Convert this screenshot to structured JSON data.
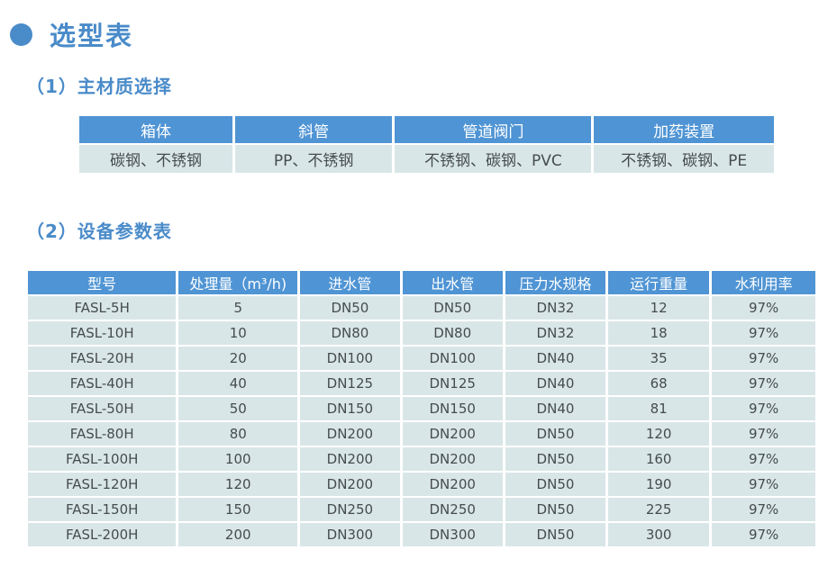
{
  "page": {
    "title": "选型表"
  },
  "colors": {
    "accent_blue": "#4a8bc9",
    "table_header_bg": "#4f94d4",
    "table_cell_bg": "#d9e6e8",
    "cell_text": "#454c4e",
    "background": "#ffffff"
  },
  "sections": {
    "material": {
      "heading": "（1）主材质选择",
      "table": {
        "headers": [
          "箱体",
          "斜管",
          "管道阀门",
          "加药装置"
        ],
        "rows": [
          [
            "碳钢、不锈钢",
            "PP、不锈钢",
            "不锈钢、碳钢、PVC",
            "不锈钢、碳钢、PE"
          ]
        ]
      }
    },
    "params": {
      "heading": "（2）设备参数表",
      "table": {
        "headers": [
          "型号",
          "处理量（m³/h)",
          "进水管",
          "出水管",
          "压力水规格",
          "运行重量",
          "水利用率"
        ],
        "rows": [
          [
            "FASL-5H",
            "5",
            "DN50",
            "DN50",
            "DN32",
            "12",
            "97%"
          ],
          [
            "FASL-10H",
            "10",
            "DN80",
            "DN80",
            "DN32",
            "18",
            "97%"
          ],
          [
            "FASL-20H",
            "20",
            "DN100",
            "DN100",
            "DN40",
            "35",
            "97%"
          ],
          [
            "FASL-40H",
            "40",
            "DN125",
            "DN125",
            "DN40",
            "68",
            "97%"
          ],
          [
            "FASL-50H",
            "50",
            "DN150",
            "DN150",
            "DN40",
            "81",
            "97%"
          ],
          [
            "FASL-80H",
            "80",
            "DN200",
            "DN200",
            "DN50",
            "120",
            "97%"
          ],
          [
            "FASL-100H",
            "100",
            "DN200",
            "DN200",
            "DN50",
            "160",
            "97%"
          ],
          [
            "FASL-120H",
            "120",
            "DN200",
            "DN200",
            "DN50",
            "190",
            "97%"
          ],
          [
            "FASL-150H",
            "150",
            "DN250",
            "DN250",
            "DN50",
            "225",
            "97%"
          ],
          [
            "FASL-200H",
            "200",
            "DN300",
            "DN300",
            "DN50",
            "300",
            "97%"
          ]
        ]
      }
    }
  }
}
